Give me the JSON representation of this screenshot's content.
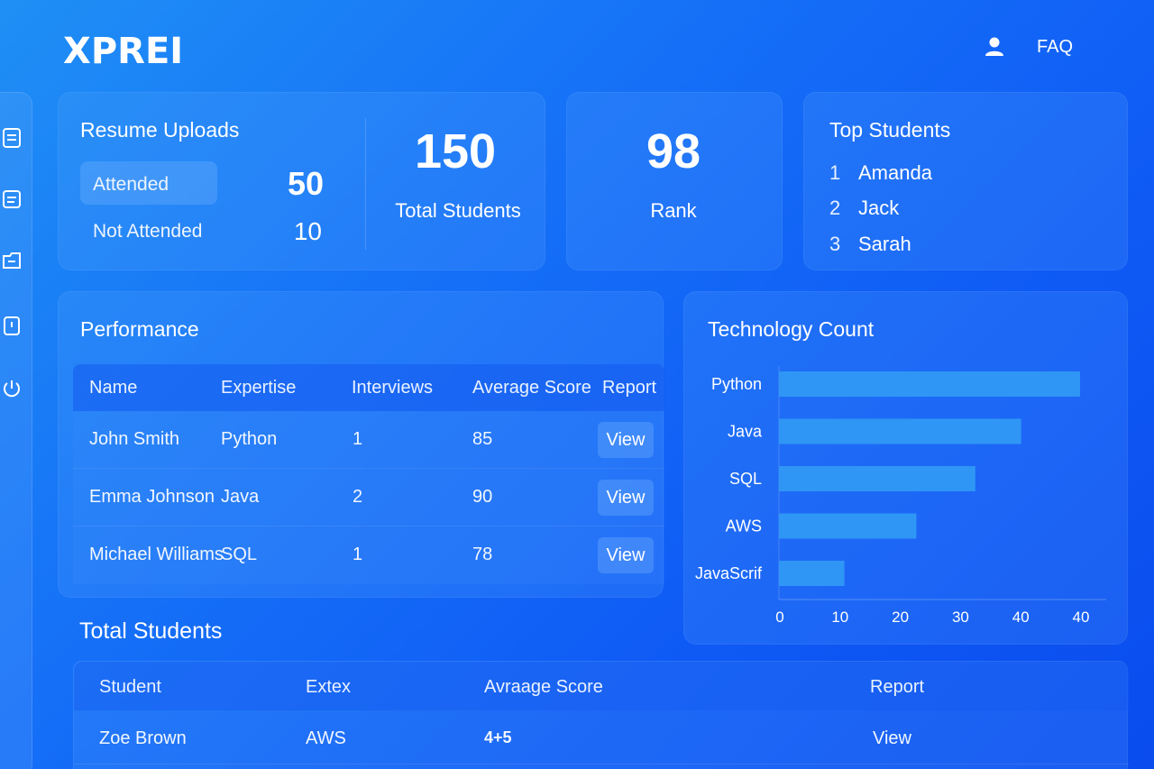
{
  "app": {
    "logo": "XPREI"
  },
  "topnav": {
    "faq": "FAQ",
    "user_icon": "user-icon"
  },
  "sidebar": {
    "icons": [
      "document-icon",
      "list-icon",
      "folder-icon",
      "clipboard-icon",
      "power-icon"
    ]
  },
  "resume_uploads": {
    "title": "Resume Uploads",
    "attended_label": "Attended",
    "attended_value": "50",
    "not_attended_label": "Not Attended",
    "not_attended_value": "10",
    "total_value": "150",
    "total_label": "Total Students"
  },
  "rank": {
    "value": "98",
    "label": "Rank"
  },
  "top_students": {
    "title": "Top Students",
    "items": [
      {
        "num": "1",
        "name": "Amanda"
      },
      {
        "num": "2",
        "name": "Jack"
      },
      {
        "num": "3",
        "name": "Sarah"
      }
    ]
  },
  "performance": {
    "title": "Performance",
    "headers": [
      "Name",
      "Expertise",
      "Interviews",
      "Average Score",
      "Report"
    ],
    "rows": [
      {
        "name": "John Smith",
        "expertise": "Python",
        "interviews": "1",
        "score": "85",
        "report": "View"
      },
      {
        "name": "Emma Johnson",
        "expertise": "Java",
        "interviews": "2",
        "score": "90",
        "report": "View"
      },
      {
        "name": "Michael Williams",
        "expertise": "SQL",
        "interviews": "1",
        "score": "78",
        "report": "View"
      }
    ]
  },
  "technology_count": {
    "title": "Technology Count"
  },
  "chart_data": {
    "type": "bar",
    "orientation": "horizontal",
    "categories": [
      "Python",
      "Java",
      "SQL",
      "AWS",
      "JavaScrif"
    ],
    "values": [
      46,
      37,
      30,
      21,
      10
    ],
    "xticks": [
      "0",
      "10",
      "20",
      "30",
      "40",
      "40"
    ],
    "xlim": [
      0,
      50
    ],
    "bar_color": "#2f96f5",
    "grid": false
  },
  "total_students": {
    "title": "Total Students",
    "headers": [
      "Student",
      "Extex",
      "Avraage Score",
      "Report"
    ],
    "rows": [
      {
        "student": "Zoe Brown",
        "ext": "AWS",
        "score": "4+5",
        "report": "View"
      }
    ]
  }
}
